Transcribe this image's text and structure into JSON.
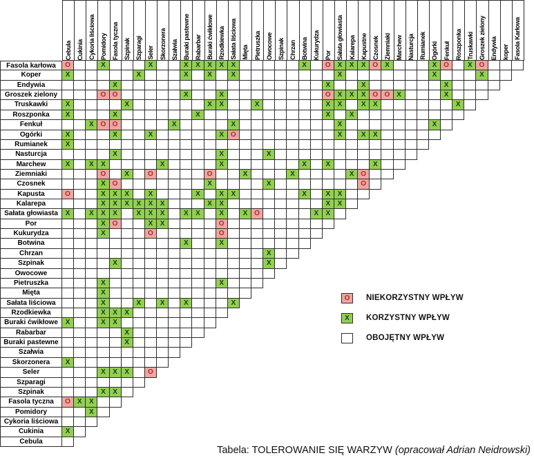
{
  "chart_data": {
    "type": "table",
    "title": "TOLEROWANIE SIĘ WARZYW",
    "marks": {
      "X": "korzystny",
      "O": "niekorzystny",
      ".": "obojętny"
    },
    "columns": [
      "Cebula",
      "Cukinia",
      "Cykoria liściowa",
      "Pomidory",
      "Fasola tyczna",
      "Szpinak",
      "Szparagi",
      "Seler",
      "Skorzonera",
      "Szałwia",
      "Buraki pastewne",
      "Rabarbar",
      "Buraki ćwikłowe",
      "Rzodkiewka",
      "Sałata liściowa",
      "Mięta",
      "Pietruszka",
      "Owocowe",
      "Szpinak",
      "Chrzan",
      "Botwina",
      "Kukurydza",
      "Por",
      "Sałata głowiasta",
      "Kalarepa",
      "Kapustne",
      "Czosnek",
      "Ziemniaki",
      "Marchew",
      "Nasturcja",
      "Rumianek",
      "Ogórki",
      "Fenkuł",
      "Roszponka",
      "Truskawki",
      "Groszek zielony",
      "Endywia",
      "koper",
      "Fasola Karłowa"
    ],
    "rows": [
      {
        "label": "Fasola karłowa",
        "cells": "O..X...X..XXXXX.....X.OXXXOX...XO.XO..."
      },
      {
        "label": "Koper",
        "cells": "X.....X...X.X.X........X.......X...X.."
      },
      {
        "label": "Endywia",
        "cells": "....X.................X..X......X...."
      },
      {
        "label": "Groszek zielony",
        "cells": "...OO.....X..X........OXXXOOX...X..."
      },
      {
        "label": "Truskawki",
        "cells": "X....X......XX..X.....XX.XX......X."
      },
      {
        "label": "Roszponka",
        "cells": "X...X......X..........X.X........."
      },
      {
        "label": "Fenkuł",
        "cells": "..XOO....X....X........X.......X."
      },
      {
        "label": "Ogórki",
        "cells": "X...X..X.....XO........X.XX....."
      },
      {
        "label": "Rumianek",
        "cells": "X.............................."
      },
      {
        "label": "Nasturcja",
        "cells": "....X........X...X............"
      },
      {
        "label": "Marchew",
        "cells": "X.XX....X....X......X.X...X.."
      },
      {
        "label": "Ziemniaki",
        "cells": "...O.X.O....O..X...X....XO.."
      },
      {
        "label": "Czosnek",
        "cells": "...XO.......X....X.......O."
      },
      {
        "label": "Kapusta",
        "cells": "O..XXX.X...X.XX.....X.XX.."
      },
      {
        "label": "Kalarepa",
        "cells": "...XXXXXX...XX........XX."
      },
      {
        "label": "Sałata głowiasta",
        "cells": "X.XXX.XXX.XX.X.XO....XX."
      },
      {
        "label": "Por",
        "cells": "...XO..XX....O........."
      },
      {
        "label": "Kukurydza",
        "cells": "...X...O.....O........"
      },
      {
        "label": "Botwina",
        "cells": "..........X..X......."
      },
      {
        "label": "Chrzan",
        "cells": ".................X.."
      },
      {
        "label": "Szpinak",
        "cells": "....X............X."
      },
      {
        "label": "Owocowe",
        "cells": ".................."
      },
      {
        "label": "Pietruszka",
        "cells": "...X.........X..."
      },
      {
        "label": "Mięta",
        "cells": "...X............"
      },
      {
        "label": "Sałata liściowa",
        "cells": "...X..X.X.X...X"
      },
      {
        "label": "Rzodkiewka",
        "cells": "...XXX........"
      },
      {
        "label": "Buraki ćwikłowe",
        "cells": "X..XX........"
      },
      {
        "label": "Rabarbar",
        "cells": ".....X......"
      },
      {
        "label": "Buraki pastewne",
        "cells": ".....X....."
      },
      {
        "label": "Szałwia",
        "cells": ".........."
      },
      {
        "label": "Skorzonera",
        "cells": "X........"
      },
      {
        "label": "Seler",
        "cells": "...XXX.O"
      },
      {
        "label": "Szparagi",
        "cells": "......."
      },
      {
        "label": "Szpinak",
        "cells": "...XX."
      },
      {
        "label": "Fasola tyczna",
        "cells": "OXX.."
      },
      {
        "label": "Pomidory",
        "cells": "..X."
      },
      {
        "label": "Cykoria liściowa",
        "cells": "..."
      },
      {
        "label": "Cukinia",
        "cells": "X."
      },
      {
        "label": "Cebula",
        "cells": "."
      }
    ]
  },
  "legend": {
    "items": [
      {
        "mark": "O",
        "type": "negative",
        "label": "NIEKORZYSTNY WPŁYW"
      },
      {
        "mark": "X",
        "type": "positive",
        "label": "KORZYSTNY WPŁYW"
      },
      {
        "mark": "",
        "type": "neutral",
        "label": "OBOJĘTNY WPŁYW"
      }
    ]
  },
  "caption": {
    "prefix": "Tabela: TOLEROWANIE SIĘ WARZYW ",
    "italic": "(opracował Adrian Neidrowski)"
  },
  "colors": {
    "positive_bg": "#92d050",
    "negative_bg": "#f2a5a0",
    "positive_text": "#203a20",
    "negative_text": "#9e312d",
    "grid": "#2b2b2b"
  }
}
